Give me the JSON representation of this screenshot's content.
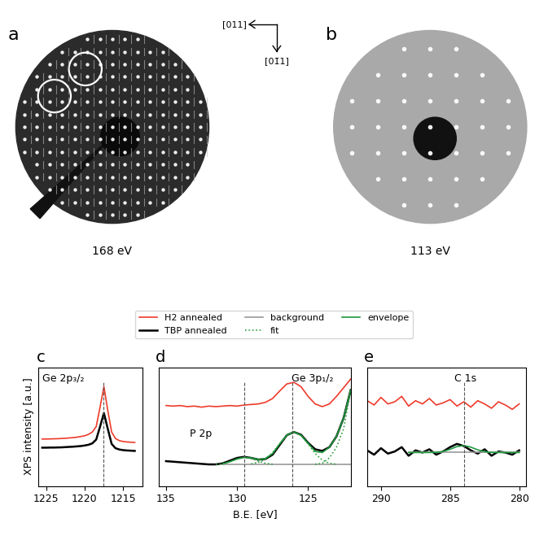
{
  "leed_images": [
    {
      "label": "a",
      "energy": "168 eV"
    },
    {
      "label": "b",
      "energy": "113 eV"
    }
  ],
  "directions": [
    "[011]",
    "[01̄1]"
  ],
  "chart_data": [
    {
      "type": "line",
      "label": "c",
      "annotations": [
        "Ge 2p₃/₂"
      ],
      "y_label": "XPS intensity [a.u.]",
      "x": [
        1225.5,
        1225,
        1224.5,
        1224,
        1223.5,
        1223,
        1222.5,
        1222,
        1221.5,
        1221,
        1220.5,
        1220,
        1219.5,
        1219,
        1218.5,
        1218,
        1217.5,
        1217,
        1216.5,
        1216,
        1215.5,
        1215,
        1214.5,
        1214,
        1213.5
      ],
      "xlim": [
        1226,
        1212.5
      ],
      "xticks": [
        1225,
        1220,
        1215
      ],
      "ylim": [
        0,
        11
      ],
      "yticks": [],
      "tick_labels": "x",
      "reference_x": [
        1217.6
      ],
      "series": [
        {
          "name": "H2 annealed",
          "color": "#ee3b2b",
          "line_style": "solid",
          "values": [
            4.35,
            4.35,
            4.36,
            4.37,
            4.38,
            4.4,
            4.42,
            4.45,
            4.48,
            4.52,
            4.58,
            4.65,
            4.78,
            5.0,
            5.5,
            7.3,
            9.2,
            7.0,
            5.0,
            4.4,
            4.2,
            4.12,
            4.08,
            4.05,
            4.03
          ]
        },
        {
          "name": "TBP annealed",
          "color": "#000000",
          "line_style": "solid",
          "values": [
            3.55,
            3.55,
            3.56,
            3.56,
            3.57,
            3.58,
            3.6,
            3.62,
            3.64,
            3.67,
            3.7,
            3.75,
            3.82,
            3.95,
            4.3,
            5.5,
            6.75,
            5.3,
            3.9,
            3.5,
            3.38,
            3.32,
            3.29,
            3.27,
            3.25
          ]
        }
      ]
    },
    {
      "type": "line",
      "label": "d",
      "annotations": [
        "P 2p",
        "Ge 3p₁/₂"
      ],
      "x_label": "B.E. [eV]",
      "legend": "lower center",
      "x": [
        135,
        134.5,
        134,
        133.5,
        133,
        132.5,
        132,
        131.5,
        131,
        130.5,
        130,
        129.5,
        129,
        128.5,
        128,
        127.5,
        127,
        126.5,
        126,
        125.5,
        125,
        124.5,
        124,
        123.5,
        123,
        122.5,
        122
      ],
      "xlim": [
        135.5,
        122
      ],
      "xticks": [
        135,
        130,
        125
      ],
      "ylim": [
        0,
        11
      ],
      "yticks": [],
      "tick_labels": "x",
      "reference_x": [
        129.5,
        126.1
      ],
      "series": [
        {
          "name": "H2 annealed",
          "color": "#ee3b2b",
          "line_style": "solid",
          "values": [
            7.45,
            7.4,
            7.45,
            7.35,
            7.4,
            7.3,
            7.4,
            7.35,
            7.4,
            7.45,
            7.4,
            7.5,
            7.55,
            7.6,
            7.75,
            8.1,
            8.8,
            9.45,
            9.6,
            9.2,
            8.3,
            7.6,
            7.35,
            7.6,
            8.3,
            9.1,
            9.9
          ]
        },
        {
          "name": "TBP annealed",
          "color": "#000000",
          "line_style": "solid",
          "values": [
            2.3,
            2.25,
            2.2,
            2.15,
            2.1,
            2.05,
            2.0,
            2.0,
            2.1,
            2.35,
            2.6,
            2.7,
            2.6,
            2.45,
            2.5,
            2.9,
            3.8,
            4.7,
            5.0,
            4.75,
            4.0,
            3.4,
            3.25,
            3.6,
            4.6,
            6.3,
            8.9
          ]
        },
        {
          "name": "background",
          "color": "#999999",
          "line_style": "solid",
          "values": [
            null,
            null,
            null,
            null,
            null,
            null,
            null,
            null,
            2.0,
            2.0,
            2.0,
            2.0,
            2.0,
            2.0,
            2.0,
            2.0,
            2.0,
            2.0,
            2.0,
            2.0,
            2.0,
            2.0,
            2.0,
            2.0,
            2.0,
            2.0,
            2.0
          ]
        },
        {
          "name": "fit",
          "color": "#2e9e3e",
          "line_style": "dotted",
          "components": [
            [
              null,
              null,
              null,
              null,
              null,
              null,
              null,
              2.0,
              2.05,
              2.25,
              2.5,
              2.65,
              2.55,
              2.3,
              2.1,
              2.02,
              null,
              null,
              null,
              null,
              null,
              null,
              null,
              null,
              null,
              null,
              null
            ],
            [
              null,
              null,
              null,
              null,
              null,
              null,
              null,
              null,
              null,
              null,
              null,
              null,
              2.05,
              2.2,
              2.5,
              3.1,
              3.9,
              4.7,
              5.0,
              4.7,
              3.9,
              3.0,
              2.4,
              2.1,
              2.02,
              null,
              null
            ],
            [
              null,
              null,
              null,
              null,
              null,
              null,
              null,
              null,
              null,
              null,
              null,
              null,
              null,
              null,
              null,
              null,
              null,
              null,
              null,
              null,
              null,
              2.02,
              2.1,
              2.6,
              3.6,
              5.3,
              8.8
            ]
          ]
        },
        {
          "name": "envelope",
          "color": "#1f9a3f",
          "line_style": "solid",
          "values": [
            null,
            null,
            null,
            null,
            null,
            null,
            null,
            null,
            2.05,
            2.25,
            2.5,
            2.65,
            2.6,
            2.45,
            2.55,
            3.0,
            3.9,
            4.7,
            5.0,
            4.7,
            3.95,
            3.2,
            3.1,
            3.6,
            4.6,
            6.3,
            8.9
          ]
        }
      ]
    },
    {
      "type": "line",
      "label": "e",
      "annotations": [
        "C 1s"
      ],
      "x": [
        291,
        290.5,
        290,
        289.5,
        289,
        288.5,
        288,
        287.5,
        287,
        286.5,
        286,
        285.5,
        285,
        284.5,
        284,
        283.5,
        283,
        282.5,
        282,
        281.5,
        281,
        280.5,
        280
      ],
      "xlim": [
        291,
        279.5
      ],
      "xticks": [
        290,
        285,
        280
      ],
      "ylim": [
        0,
        11
      ],
      "yticks": [],
      "tick_labels": "x",
      "reference_x": [
        284.0
      ],
      "series": [
        {
          "name": "H2 annealed",
          "color": "#ee3b2b",
          "line_style": "solid",
          "values": [
            7.9,
            7.5,
            8.2,
            7.6,
            7.8,
            8.3,
            7.4,
            7.9,
            7.6,
            8.1,
            7.5,
            7.7,
            8.0,
            7.4,
            7.8,
            7.3,
            7.9,
            7.6,
            7.2,
            7.8,
            7.5,
            7.1,
            7.6
          ]
        },
        {
          "name": "TBP annealed",
          "color": "#000000",
          "line_style": "solid",
          "values": [
            3.3,
            2.9,
            3.5,
            3.0,
            3.2,
            3.6,
            2.8,
            3.3,
            3.1,
            3.4,
            2.9,
            3.2,
            3.6,
            3.9,
            3.7,
            3.3,
            3.0,
            3.4,
            2.8,
            3.2,
            3.1,
            2.9,
            3.3
          ]
        },
        {
          "name": "background",
          "color": "#999999",
          "line_style": "solid",
          "values": [
            null,
            null,
            null,
            null,
            null,
            null,
            3.1,
            3.1,
            3.1,
            3.1,
            3.1,
            3.1,
            3.1,
            3.1,
            3.1,
            3.1,
            3.1,
            3.1,
            3.1,
            3.1,
            3.1,
            3.1,
            3.1
          ]
        },
        {
          "name": "envelope",
          "color": "#1f9a3f",
          "line_style": "solid",
          "values": [
            null,
            null,
            null,
            null,
            null,
            null,
            3.1,
            3.1,
            3.1,
            3.1,
            3.12,
            3.2,
            3.4,
            3.65,
            3.75,
            3.6,
            3.35,
            3.18,
            3.11,
            3.1,
            3.1,
            3.1,
            3.1
          ]
        }
      ]
    }
  ]
}
